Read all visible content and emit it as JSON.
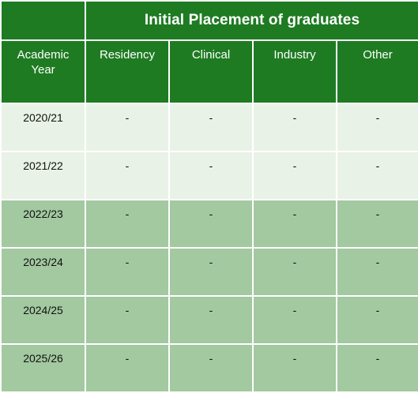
{
  "table": {
    "title": "Initial Placement of graduates",
    "columns": [
      "Academic Year",
      "Residency",
      "Clinical",
      "Industry",
      "Other"
    ],
    "rows": [
      {
        "year": "2020/21",
        "values": [
          "-",
          "-",
          "-",
          "-"
        ]
      },
      {
        "year": "2021/22",
        "values": [
          "-",
          "-",
          "-",
          "-"
        ]
      },
      {
        "year": "2022/23",
        "values": [
          "-",
          "-",
          "-",
          "-"
        ]
      },
      {
        "year": "2023/24",
        "values": [
          "-",
          "-",
          "-",
          "-"
        ]
      },
      {
        "year": "2024/25",
        "values": [
          "-",
          "-",
          "-",
          "-"
        ]
      },
      {
        "year": "2025/26",
        "values": [
          "-",
          "-",
          "-",
          "-"
        ]
      }
    ]
  },
  "colors": {
    "header_green": "#1e7b22",
    "row_light": "#e9f2e6",
    "row_dark": "#a2c99f"
  }
}
